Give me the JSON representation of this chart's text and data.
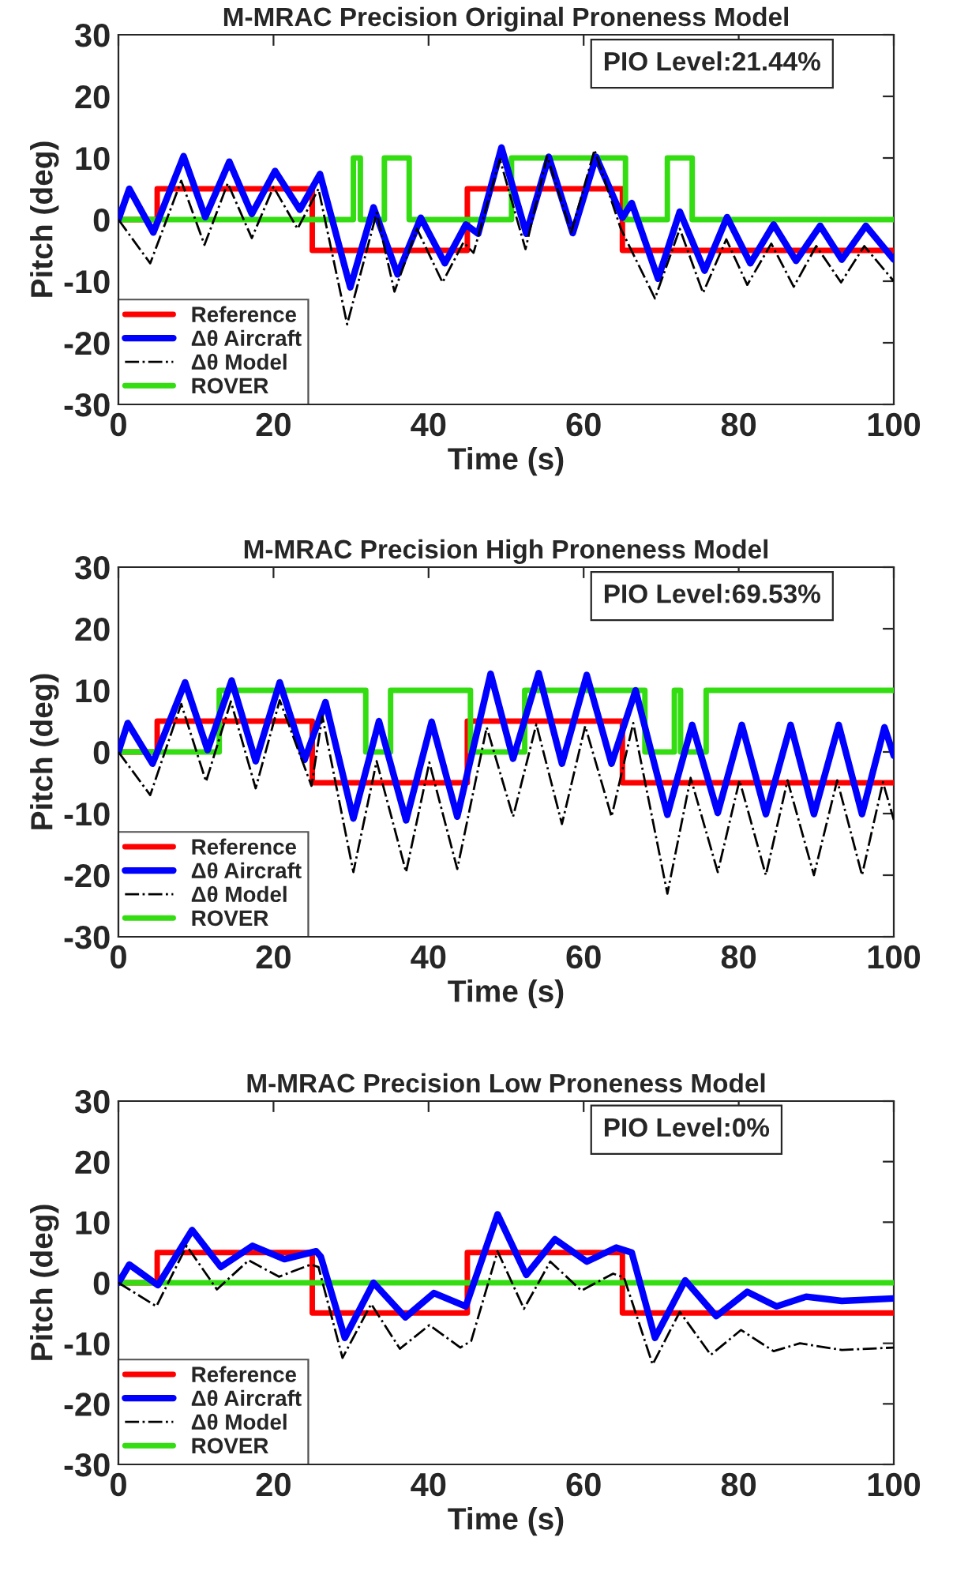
{
  "chart_data": [
    {
      "type": "line",
      "title": "M-MRAC Precision Original Proneness Model",
      "xlabel": "Time (s)",
      "ylabel": "Pitch (deg)",
      "xlim": [
        0,
        100
      ],
      "xticks": [
        0,
        20,
        40,
        60,
        80,
        100
      ],
      "ylim": [
        -30,
        30
      ],
      "yticks": [
        -30,
        -20,
        -10,
        0,
        10,
        20,
        30
      ],
      "grid": false,
      "legend": "bottom left",
      "annotations": [
        "PIO Level:21.44%"
      ],
      "series": [
        {
          "name": "Reference",
          "type": "step",
          "color": "#ff0000",
          "line_style": "solid",
          "x": [
            0,
            5,
            25,
            45,
            65,
            100
          ],
          "values": [
            0,
            5,
            -5,
            5,
            -5,
            -5
          ]
        },
        {
          "name": "Δθ Aircraft",
          "color": "#0000ff",
          "line_style": "solid",
          "x": [
            0,
            1.4,
            4.5,
            8.4,
            11.2,
            14.3,
            17.2,
            20.2,
            23.4,
            26,
            29.9,
            32.9,
            36,
            39,
            42.1,
            44.8,
            46.4,
            49.4,
            52.6,
            55.5,
            58.6,
            61.6,
            65,
            66.2,
            69.6,
            72.4,
            75.6,
            78.5,
            81.5,
            84.5,
            87.4,
            90.5,
            93.3,
            96.4,
            100
          ],
          "values": [
            0,
            5,
            -2.1,
            10.3,
            0.4,
            9.4,
            0.9,
            7.9,
            1.6,
            7.4,
            -11,
            2,
            -8.9,
            0.3,
            -7.1,
            -0.8,
            -2.3,
            11.7,
            -2.3,
            10.2,
            -2.2,
            10.2,
            0.3,
            2.7,
            -9.6,
            1.3,
            -8.3,
            0.4,
            -7.1,
            -0.8,
            -6.7,
            -1,
            -6.5,
            -1,
            -6.5
          ]
        },
        {
          "name": "Δθ Model",
          "color": "#000000",
          "line_style": "dashed",
          "x": [
            0,
            4.1,
            8.1,
            11.1,
            14.1,
            17.2,
            20,
            23.1,
            25.8,
            29.5,
            33.3,
            35.6,
            38.5,
            41.8,
            44.5,
            45.8,
            49.2,
            52.5,
            55.3,
            58.4,
            61.4,
            64.8,
            69.2,
            72.4,
            75.4,
            78.4,
            81.1,
            84.2,
            87.1,
            90,
            93.2,
            96.2,
            100
          ],
          "values": [
            0,
            -7.1,
            6.3,
            -4.1,
            5.9,
            -3,
            5.3,
            -1.5,
            5,
            -17,
            1.1,
            -11.7,
            -1.5,
            -10.2,
            -3.7,
            -5.4,
            9.8,
            -4.8,
            10.3,
            -2.1,
            11.3,
            -1.5,
            -12.8,
            -1.5,
            -11.9,
            -3.2,
            -10.6,
            -3.9,
            -10.9,
            -4.3,
            -10.2,
            -4.3,
            -10
          ]
        },
        {
          "name": "ROVER",
          "type": "step",
          "color": "#33dd11",
          "line_style": "solid",
          "x": [
            0,
            30.3,
            31.2,
            34.3,
            37.5,
            50.7,
            65.4,
            70.8,
            74,
            100
          ],
          "values": [
            0,
            10,
            0,
            10,
            0,
            10,
            0,
            10,
            0,
            0
          ]
        }
      ]
    },
    {
      "type": "line",
      "title": "M-MRAC Precision High Proneness Model",
      "xlabel": "Time (s)",
      "ylabel": "Pitch (deg)",
      "xlim": [
        0,
        100
      ],
      "xticks": [
        0,
        20,
        40,
        60,
        80,
        100
      ],
      "ylim": [
        -30,
        30
      ],
      "yticks": [
        -30,
        -20,
        -10,
        0,
        10,
        20,
        30
      ],
      "grid": false,
      "legend": "bottom left",
      "annotations": [
        "PIO Level:69.53%"
      ],
      "series": [
        {
          "name": "Reference",
          "type": "step",
          "color": "#ff0000",
          "line_style": "solid",
          "x": [
            0,
            5,
            25,
            45,
            65,
            100
          ],
          "values": [
            0,
            5,
            -5,
            5,
            -5,
            -5
          ]
        },
        {
          "name": "Δθ Aircraft",
          "color": "#0000ff",
          "line_style": "solid",
          "x": [
            0,
            1.2,
            4.4,
            8.6,
            11.5,
            14.6,
            17.7,
            20.8,
            24,
            26.7,
            30.3,
            33.6,
            37.1,
            40.4,
            43.7,
            48,
            50.9,
            54.2,
            57.2,
            60.4,
            63.6,
            66.7,
            70.8,
            74,
            77.3,
            80.4,
            83.5,
            86.7,
            89.7,
            92.9,
            95.9,
            98.8,
            100
          ],
          "values": [
            0,
            4.7,
            -1.9,
            11.3,
            0.3,
            11.6,
            -1.5,
            11.3,
            -1.3,
            8.1,
            -10.8,
            5,
            -11.1,
            4.9,
            -10.5,
            12.7,
            -1.1,
            12.8,
            -1.9,
            12.5,
            -1.9,
            10,
            -10.2,
            4.4,
            -9.9,
            4.4,
            -10.1,
            4.4,
            -10.1,
            4.4,
            -10.1,
            4,
            -0.6
          ]
        },
        {
          "name": "Δθ Model",
          "color": "#000000",
          "line_style": "dashed",
          "x": [
            0,
            4.1,
            8.1,
            11.3,
            14.5,
            17.7,
            20.8,
            24.9,
            26.3,
            30.3,
            33.3,
            37.1,
            40.1,
            43.7,
            47.5,
            50.9,
            53.9,
            57.2,
            60.2,
            63.6,
            66.4,
            70.8,
            73.8,
            77.3,
            80.1,
            83.5,
            86.3,
            89.7,
            92.7,
            95.9,
            98.6,
            100
          ],
          "values": [
            0,
            -7,
            7.8,
            -4.8,
            8.2,
            -5.9,
            8.4,
            -5.5,
            5.8,
            -19.5,
            -1.5,
            -19.5,
            -1.7,
            -19,
            4,
            -10.5,
            4.5,
            -11.7,
            4.2,
            -10.5,
            4.7,
            -23,
            -4.2,
            -19.5,
            -4.6,
            -20,
            -4.6,
            -20,
            -4.6,
            -20,
            -4.9,
            -11
          ]
        },
        {
          "name": "ROVER",
          "type": "step",
          "color": "#33dd11",
          "line_style": "solid",
          "x": [
            0,
            13,
            31.9,
            35.1,
            45.4,
            52.4,
            67.9,
            71.7,
            72.5,
            75.8,
            100
          ],
          "values": [
            0,
            10,
            0,
            10,
            0,
            10,
            0,
            10,
            0,
            10,
            10
          ]
        }
      ]
    },
    {
      "type": "line",
      "title": "M-MRAC Precision Low Proneness Model",
      "xlabel": "Time (s)",
      "ylabel": "Pitch (deg)",
      "xlim": [
        0,
        100
      ],
      "xticks": [
        0,
        20,
        40,
        60,
        80,
        100
      ],
      "ylim": [
        -30,
        30
      ],
      "yticks": [
        -30,
        -20,
        -10,
        0,
        10,
        20,
        30
      ],
      "grid": false,
      "legend": "bottom left",
      "annotations": [
        "PIO Level:0%"
      ],
      "series": [
        {
          "name": "Reference",
          "type": "step",
          "color": "#ff0000",
          "line_style": "solid",
          "x": [
            0,
            5,
            25,
            45,
            65,
            100
          ],
          "values": [
            0,
            5,
            -5,
            5,
            -5,
            -5
          ]
        },
        {
          "name": "Δθ Aircraft",
          "color": "#0000ff",
          "line_style": "solid",
          "x": [
            0,
            1.4,
            5.1,
            9.5,
            13.2,
            17.3,
            21.4,
            25.5,
            26.1,
            29.2,
            32.9,
            37,
            40.7,
            44.8,
            48.9,
            52.6,
            56.3,
            60.4,
            64.2,
            66.2,
            69.2,
            73.1,
            77.1,
            81.1,
            84.9,
            88.7,
            93.3,
            100
          ],
          "values": [
            0,
            3,
            -0.4,
            8.7,
            2.6,
            6.1,
            3.9,
            5.2,
            4.3,
            -9.1,
            0,
            -5.7,
            -1.7,
            -3.9,
            11.3,
            1.3,
            7.2,
            3.5,
            5.8,
            5,
            -9.1,
            0.4,
            -5.5,
            -1.5,
            -3.9,
            -2.3,
            -3,
            -2.6
          ]
        },
        {
          "name": "Δθ Model",
          "color": "#000000",
          "line_style": "dashed",
          "x": [
            0,
            4.9,
            8.8,
            12.7,
            16.8,
            20.7,
            24.8,
            25.8,
            28.9,
            32.6,
            36.3,
            40.1,
            44.1,
            45.5,
            48.9,
            52.3,
            55.7,
            59.7,
            63.8,
            65.2,
            68.9,
            72.4,
            76.4,
            80.3,
            84.5,
            87.9,
            93.3,
            100
          ],
          "values": [
            0,
            -3.9,
            6.1,
            -1.1,
            3.7,
            1,
            3,
            2.6,
            -12.4,
            -3.5,
            -10.9,
            -7,
            -10.7,
            -9.6,
            5.2,
            -4.3,
            3.5,
            -1.3,
            1.5,
            0.9,
            -13.5,
            -4.8,
            -11.9,
            -7.8,
            -11.3,
            -10,
            -11.1,
            -10.7
          ]
        },
        {
          "name": "ROVER",
          "type": "step",
          "color": "#33dd11",
          "line_style": "solid",
          "x": [
            0,
            100
          ],
          "values": [
            0,
            0
          ]
        }
      ]
    }
  ]
}
